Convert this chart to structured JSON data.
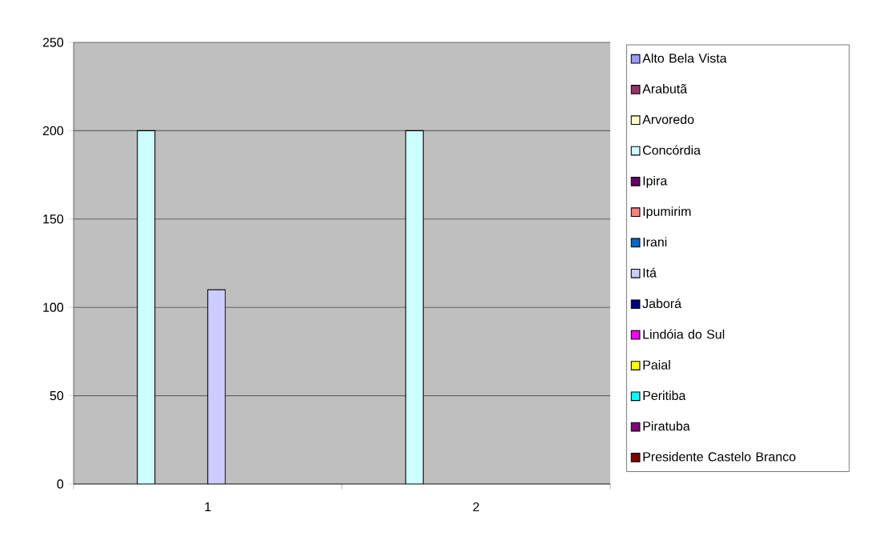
{
  "chart_data": {
    "type": "bar",
    "categories": [
      "1",
      "2"
    ],
    "series": [
      {
        "name": "Alto Bela Vista",
        "color": "#9999ff",
        "values": [
          null,
          null
        ]
      },
      {
        "name": "Arabutã",
        "color": "#993366",
        "values": [
          null,
          null
        ]
      },
      {
        "name": "Arvoredo",
        "color": "#ffffcc",
        "values": [
          null,
          null
        ]
      },
      {
        "name": "Concórdia",
        "color": "#ccffff",
        "values": [
          200,
          200
        ]
      },
      {
        "name": "Ipira",
        "color": "#660066",
        "values": [
          null,
          null
        ]
      },
      {
        "name": "Ipumirim",
        "color": "#ff8080",
        "values": [
          null,
          null
        ]
      },
      {
        "name": "Irani",
        "color": "#0066cc",
        "values": [
          null,
          null
        ]
      },
      {
        "name": "Itá",
        "color": "#ccccff",
        "values": [
          110,
          null
        ]
      },
      {
        "name": "Jaborá",
        "color": "#000080",
        "values": [
          null,
          null
        ]
      },
      {
        "name": "Lindóia do Sul",
        "color": "#ff00ff",
        "values": [
          null,
          null
        ]
      },
      {
        "name": "Paial",
        "color": "#ffff00",
        "values": [
          null,
          null
        ]
      },
      {
        "name": "Peritiba",
        "color": "#00ffff",
        "values": [
          null,
          null
        ]
      },
      {
        "name": "Piratuba",
        "color": "#800080",
        "values": [
          null,
          null
        ]
      },
      {
        "name": "Presidente Castelo Branco",
        "color": "#800000",
        "values": [
          null,
          null
        ]
      }
    ],
    "ylim": [
      0,
      250
    ],
    "yticks": [
      0,
      50,
      100,
      150,
      200,
      250
    ],
    "grid": "y",
    "legend": "right"
  }
}
